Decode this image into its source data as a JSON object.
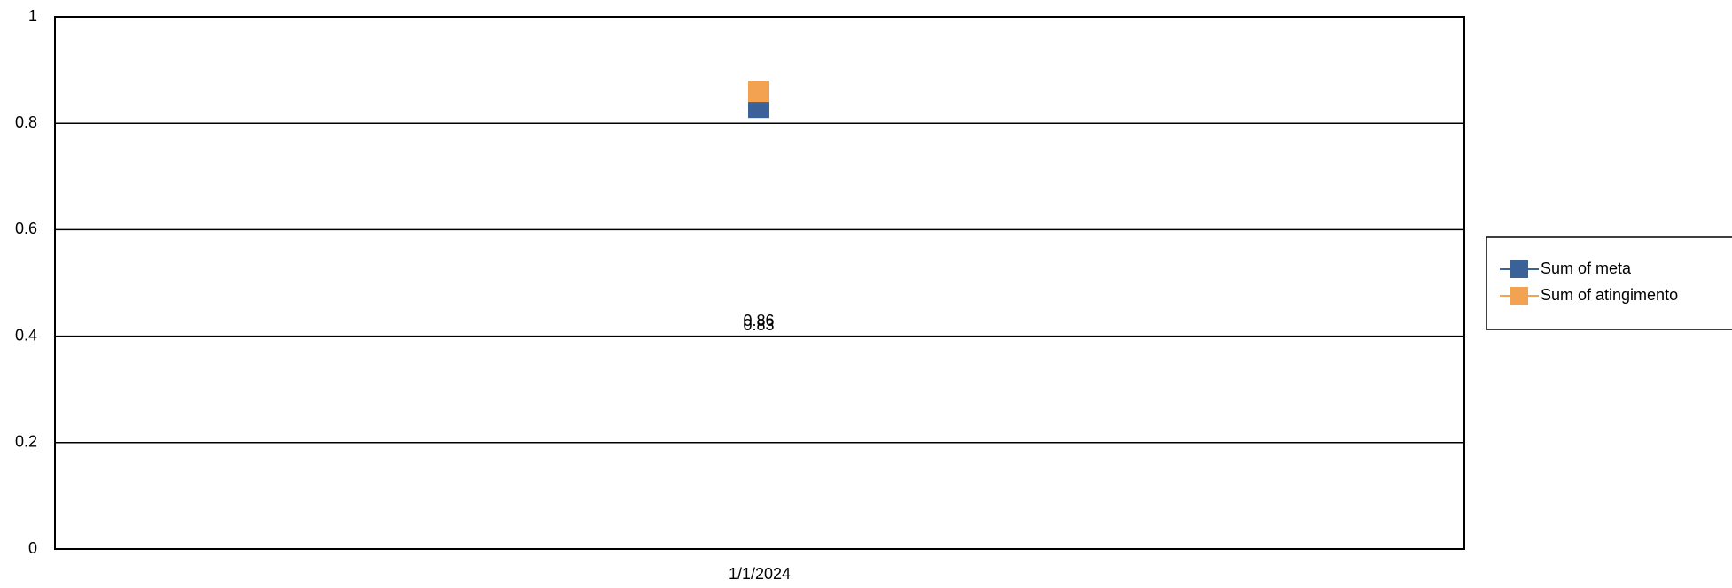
{
  "chart_data": {
    "type": "line",
    "categories": [
      "1/1/2024"
    ],
    "series": [
      {
        "name": "Sum of meta",
        "values": [
          0.83
        ],
        "labels": [
          "0.83"
        ],
        "color": "#3a6299"
      },
      {
        "name": "Sum of atingimento",
        "values": [
          0.86
        ],
        "labels": [
          "0.86"
        ],
        "color": "#f2a250"
      }
    ],
    "ylim": [
      0,
      1
    ],
    "yticks": [
      0,
      0.2,
      0.4,
      0.6,
      0.8,
      1
    ],
    "ytick_labels": [
      "0",
      "0.2",
      "0.4",
      "0.6",
      "0.8",
      "1"
    ],
    "grid": true,
    "legend_position": "right",
    "title": "",
    "xlabel": "",
    "ylabel": ""
  }
}
